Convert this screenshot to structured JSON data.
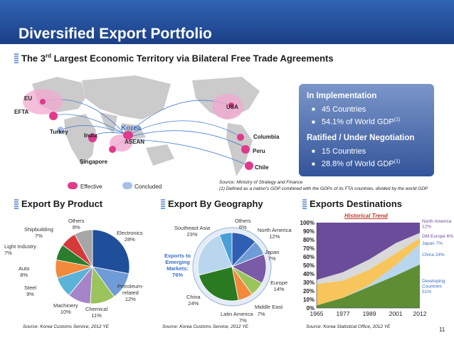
{
  "header": {
    "title": "Diversified Export Portfolio"
  },
  "subtitle": {
    "prefix": "The 3",
    "sup": "rd",
    "suffix": " Largest Economic Territory via Bilateral Free Trade Agreements"
  },
  "map": {
    "labels": {
      "eu": "EU",
      "efta": "EFTA",
      "turkey": "Turkey",
      "india": "India",
      "korea": "Korea",
      "asean": "ASEAN",
      "singapore": "Singapore",
      "usa": "USA",
      "columbia": "Columbia",
      "peru": "Peru",
      "chile": "Chile"
    },
    "legend": {
      "effective": "Effective",
      "concluded": "Concluded"
    },
    "colors": {
      "effective": "#e03a8c",
      "concluded": "#a8bfe8",
      "land": "#c9c9c9"
    }
  },
  "fta_panel": {
    "in_impl_title": "In Implementation",
    "in_impl_countries": "45 Countries",
    "in_impl_gdp": "54.1% of World GDP",
    "in_impl_gdp_note": "(1)",
    "ratified_title": "Ratified / Under Negotiation",
    "ratified_countries": "15 Countries",
    "ratified_gdp": "28.8% of World GDP",
    "ratified_gdp_note": "(1)"
  },
  "source_main": {
    "line1": "Source:  Ministry of Strategy and Finance",
    "line2": "(1)    Defined as a nation's GDP combined with the GDPs of its FTA countries, divided by the world GDP"
  },
  "sections": {
    "product": "Export By Product",
    "geography": "Export By Geography",
    "destinations": "Exports Destinations"
  },
  "sources": {
    "product": "Source: Korea Customs Service, 2012 YE",
    "geography": "Source: Korea Customs Service, 2012 YE",
    "destinations": "Source: Korea Statistical Office, 2012 YE"
  },
  "page_number": "11",
  "chart_data": [
    {
      "type": "pie",
      "categories": [
        "Electronics",
        "Petroleum-related",
        "Chemical",
        "Machinery",
        "Steel",
        "Auto",
        "Light Industry",
        "Shipbuilding",
        "Others"
      ],
      "values": [
        28,
        12,
        11,
        10,
        9,
        8,
        7,
        7,
        8
      ],
      "labels": [
        "Electronics\n28%",
        "Petroleum-\nrelated\n12%",
        "Chemical\n11%",
        "Machinery\n10%",
        "Steel\n9%",
        "Auto\n8%",
        "Light Industry\n7%",
        "Shipbuilding\n7%",
        "Others\n8%"
      ],
      "colors": [
        "#1f4e9a",
        "#6f9bd7",
        "#9bc45c",
        "#a684c8",
        "#5bb3d8",
        "#f2893b",
        "#2c7d2c",
        "#d63b3b",
        "#a6a6a6"
      ]
    },
    {
      "type": "pie",
      "categories": [
        "North America",
        "Japan",
        "Europe",
        "Middle East",
        "Latin America",
        "China",
        "Southeast Asia",
        "Others"
      ],
      "values": [
        12,
        7,
        14,
        7,
        7,
        24,
        23,
        6
      ],
      "labels": [
        "North America\n12%",
        "Japan\n7%",
        "Europe\n14%",
        "Middle East",
        "Latin America\n7%\n7%",
        "China\n24%",
        "Southeast Asia\n23%",
        "Others\n6%"
      ],
      "colors": [
        "#2f5fb3",
        "#6f9bd7",
        "#7b5aa6",
        "#9bc45c",
        "#f2893b",
        "#2a7a22",
        "#b9d6ef",
        "#4aa0d6"
      ],
      "annotation": "Exports to\nEmerging\nMarkets:\n76%"
    },
    {
      "type": "area",
      "title": "Historical Trend",
      "x": [
        1965,
        1977,
        1989,
        2001,
        2012
      ],
      "x_tick_labels": [
        "1965",
        "1977",
        "1989",
        "2001",
        "2012"
      ],
      "y_tick_labels": [
        "0%",
        "10%",
        "20%",
        "30%",
        "40%",
        "50%",
        "60%",
        "70%",
        "80%",
        "90%",
        "100%"
      ],
      "ylim": [
        0,
        100
      ],
      "series": [
        {
          "name": "Developing Countries 51%",
          "values": [
            3,
            12,
            25,
            38,
            51
          ],
          "color": "#5e8d34"
        },
        {
          "name": "China 24%",
          "values": [
            0,
            0,
            2,
            12,
            24
          ],
          "color": "#b9d6ef"
        },
        {
          "name": "Japan 7%",
          "values": [
            25,
            20,
            18,
            14,
            7
          ],
          "color": "#f7c55b"
        },
        {
          "name": "DM Europe 6%",
          "values": [
            5,
            10,
            12,
            12,
            6
          ],
          "color": "#d9d9d9"
        },
        {
          "name": "North America 12%",
          "values": [
            67,
            58,
            43,
            24,
            12
          ],
          "color": "#6b4c9a"
        }
      ],
      "legend": [
        "North America\n12%",
        "DM Europe 6%",
        "Japan 7%",
        "China 24%",
        "Developing\nCountries\n51%"
      ]
    }
  ]
}
